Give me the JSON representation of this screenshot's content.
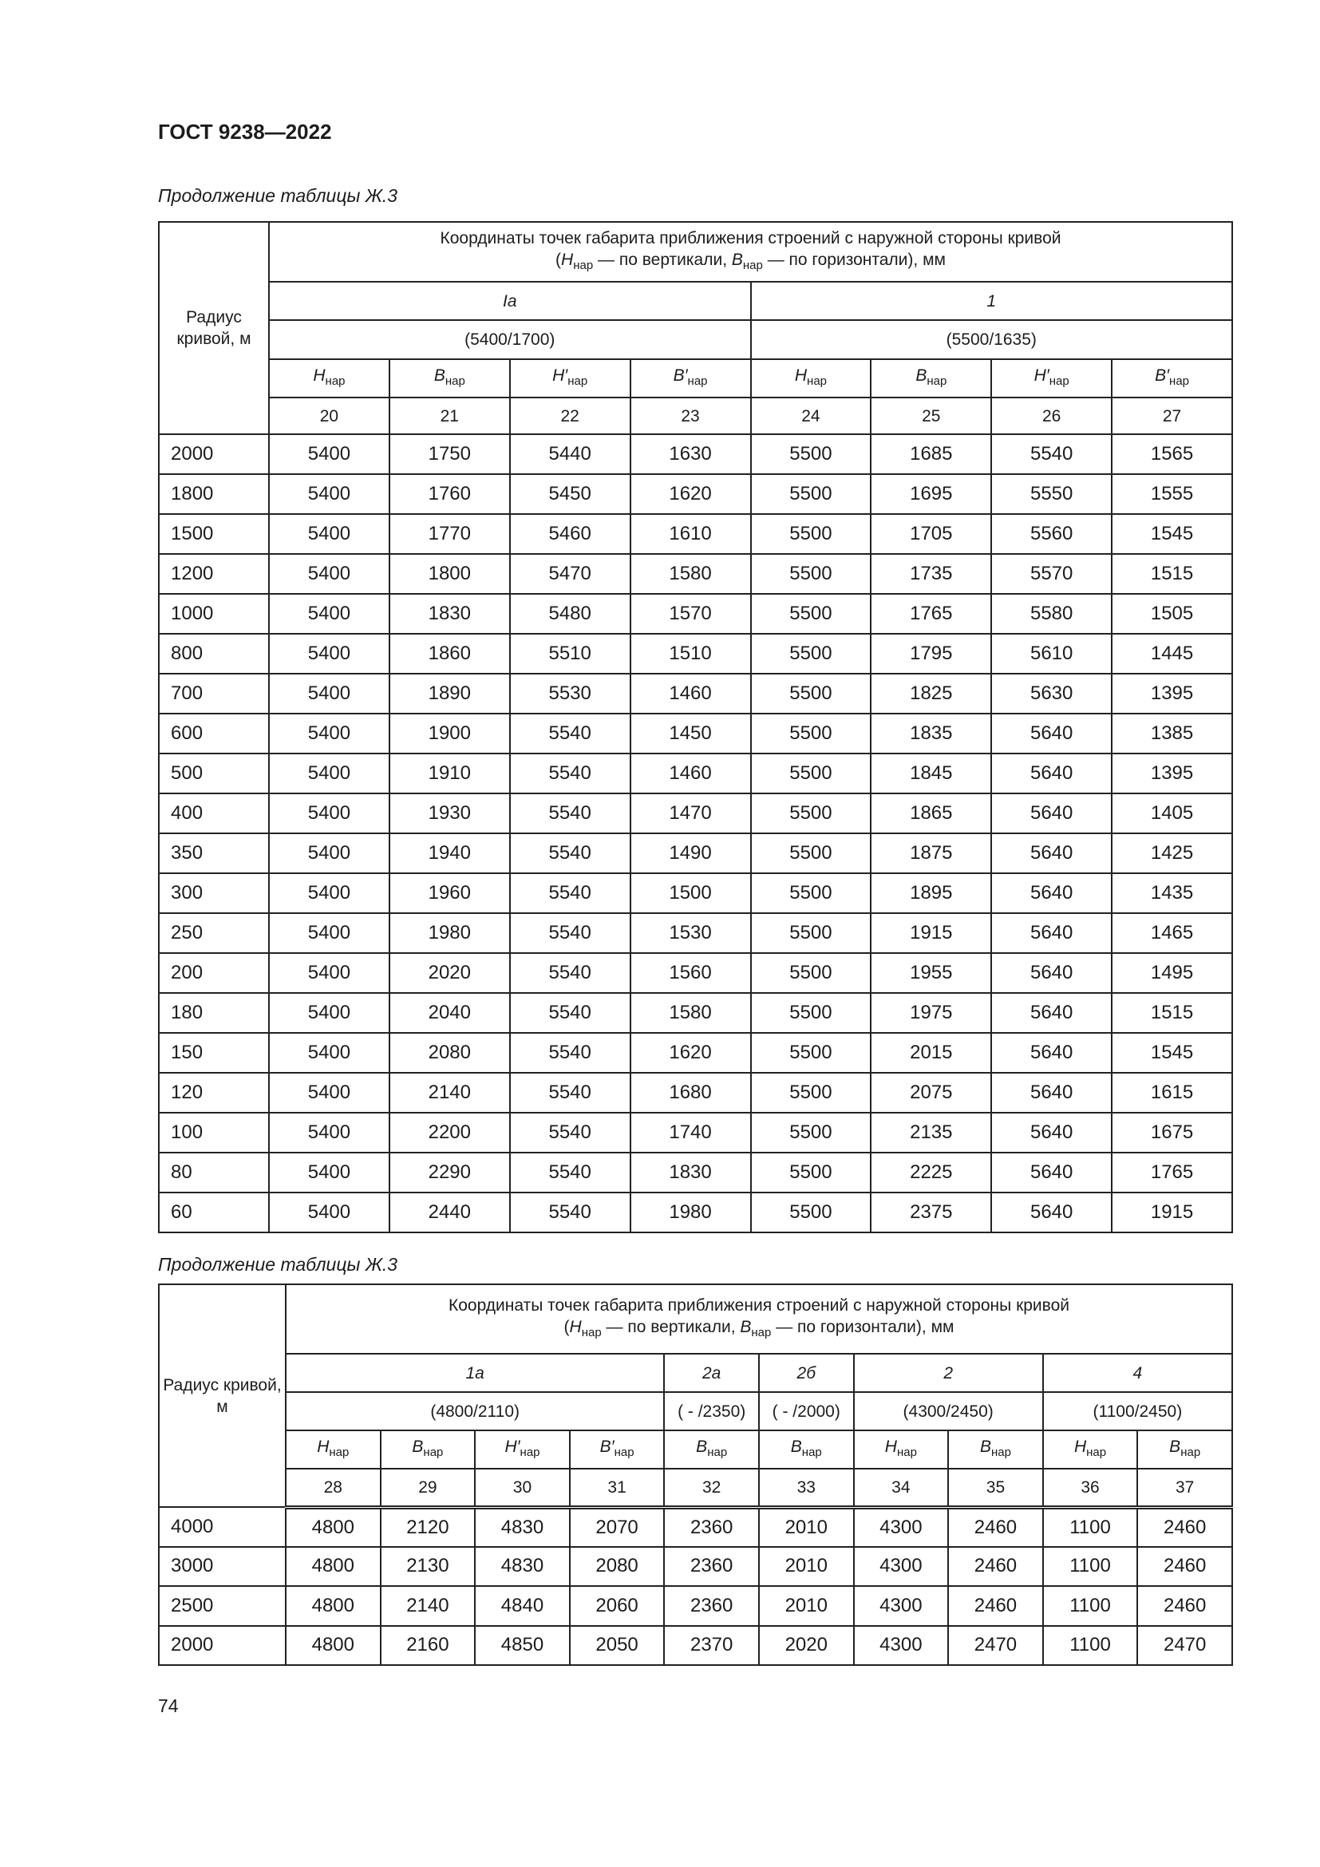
{
  "header": {
    "doc_title": "ГОСТ 9238—2022"
  },
  "footer": {
    "page_number": "74"
  },
  "coord_title": {
    "line1": "Координаты точек габарита приближения строений с наружной стороны кривой",
    "open": "(",
    "h": "H",
    "b": "B",
    "sub": "нар",
    "mid1": " — по вертикали, ",
    "mid2": " — по горизонтали), мм"
  },
  "tables": [
    {
      "caption": "Продолжение таблицы Ж.3",
      "radius_header": "Радиус кривой, м",
      "groups": [
        {
          "label": "Ia",
          "sub": "(5400/1700)",
          "span": 4
        },
        {
          "label": "1",
          "sub": "(5500/1635)",
          "span": 4
        }
      ],
      "columns": [
        {
          "letter": "H",
          "sub": "нар"
        },
        {
          "letter": "B",
          "sub": "нар"
        },
        {
          "letter": "H′",
          "sub": "нар"
        },
        {
          "letter": "B′",
          "sub": "нар"
        },
        {
          "letter": "H",
          "sub": "нар"
        },
        {
          "letter": "B",
          "sub": "нар"
        },
        {
          "letter": "H′",
          "sub": "нар"
        },
        {
          "letter": "B′",
          "sub": "нар"
        }
      ],
      "column_numbers": [
        "20",
        "21",
        "22",
        "23",
        "24",
        "25",
        "26",
        "27"
      ],
      "rows": [
        [
          "2000",
          "5400",
          "1750",
          "5440",
          "1630",
          "5500",
          "1685",
          "5540",
          "1565"
        ],
        [
          "1800",
          "5400",
          "1760",
          "5450",
          "1620",
          "5500",
          "1695",
          "5550",
          "1555"
        ],
        [
          "1500",
          "5400",
          "1770",
          "5460",
          "1610",
          "5500",
          "1705",
          "5560",
          "1545"
        ],
        [
          "1200",
          "5400",
          "1800",
          "5470",
          "1580",
          "5500",
          "1735",
          "5570",
          "1515"
        ],
        [
          "1000",
          "5400",
          "1830",
          "5480",
          "1570",
          "5500",
          "1765",
          "5580",
          "1505"
        ],
        [
          "800",
          "5400",
          "1860",
          "5510",
          "1510",
          "5500",
          "1795",
          "5610",
          "1445"
        ],
        [
          "700",
          "5400",
          "1890",
          "5530",
          "1460",
          "5500",
          "1825",
          "5630",
          "1395"
        ],
        [
          "600",
          "5400",
          "1900",
          "5540",
          "1450",
          "5500",
          "1835",
          "5640",
          "1385"
        ],
        [
          "500",
          "5400",
          "1910",
          "5540",
          "1460",
          "5500",
          "1845",
          "5640",
          "1395"
        ],
        [
          "400",
          "5400",
          "1930",
          "5540",
          "1470",
          "5500",
          "1865",
          "5640",
          "1405"
        ],
        [
          "350",
          "5400",
          "1940",
          "5540",
          "1490",
          "5500",
          "1875",
          "5640",
          "1425"
        ],
        [
          "300",
          "5400",
          "1960",
          "5540",
          "1500",
          "5500",
          "1895",
          "5640",
          "1435"
        ],
        [
          "250",
          "5400",
          "1980",
          "5540",
          "1530",
          "5500",
          "1915",
          "5640",
          "1465"
        ],
        [
          "200",
          "5400",
          "2020",
          "5540",
          "1560",
          "5500",
          "1955",
          "5640",
          "1495"
        ],
        [
          "180",
          "5400",
          "2040",
          "5540",
          "1580",
          "5500",
          "1975",
          "5640",
          "1515"
        ],
        [
          "150",
          "5400",
          "2080",
          "5540",
          "1620",
          "5500",
          "2015",
          "5640",
          "1545"
        ],
        [
          "120",
          "5400",
          "2140",
          "5540",
          "1680",
          "5500",
          "2075",
          "5640",
          "1615"
        ],
        [
          "100",
          "5400",
          "2200",
          "5540",
          "1740",
          "5500",
          "2135",
          "5640",
          "1675"
        ],
        [
          "80",
          "5400",
          "2290",
          "5540",
          "1830",
          "5500",
          "2225",
          "5640",
          "1765"
        ],
        [
          "60",
          "5400",
          "2440",
          "5540",
          "1980",
          "5500",
          "2375",
          "5640",
          "1915"
        ]
      ]
    },
    {
      "caption": "Продолжение таблицы Ж.3",
      "radius_header": "Радиус кривой, м",
      "groups": [
        {
          "label": "1a",
          "sub": "(4800/2110)",
          "span": 4
        },
        {
          "label": "2a",
          "sub": "( - /2350)",
          "span": 1
        },
        {
          "label": "2б",
          "sub": "( - /2000)",
          "span": 1
        },
        {
          "label": "2",
          "sub": "(4300/2450)",
          "span": 2
        },
        {
          "label": "4",
          "sub": "(1100/2450)",
          "span": 2
        }
      ],
      "columns": [
        {
          "letter": "H",
          "sub": "нар"
        },
        {
          "letter": "B",
          "sub": "нар"
        },
        {
          "letter": "H′",
          "sub": "нар"
        },
        {
          "letter": "B′",
          "sub": "нар"
        },
        {
          "letter": "B",
          "sub": "нар"
        },
        {
          "letter": "B",
          "sub": "нар"
        },
        {
          "letter": "H",
          "sub": "нар"
        },
        {
          "letter": "B",
          "sub": "нар"
        },
        {
          "letter": "H",
          "sub": "нар"
        },
        {
          "letter": "B",
          "sub": "нар"
        }
      ],
      "column_numbers": [
        "28",
        "29",
        "30",
        "31",
        "32",
        "33",
        "34",
        "35",
        "36",
        "37"
      ],
      "rows": [
        [
          "4000",
          "4800",
          "2120",
          "4830",
          "2070",
          "2360",
          "2010",
          "4300",
          "2460",
          "1100",
          "2460"
        ],
        [
          "3000",
          "4800",
          "2130",
          "4830",
          "2080",
          "2360",
          "2010",
          "4300",
          "2460",
          "1100",
          "2460"
        ],
        [
          "2500",
          "4800",
          "2140",
          "4840",
          "2060",
          "2360",
          "2010",
          "4300",
          "2460",
          "1100",
          "2460"
        ],
        [
          "2000",
          "4800",
          "2160",
          "4850",
          "2050",
          "2370",
          "2020",
          "4300",
          "2470",
          "1100",
          "2470"
        ]
      ]
    }
  ]
}
